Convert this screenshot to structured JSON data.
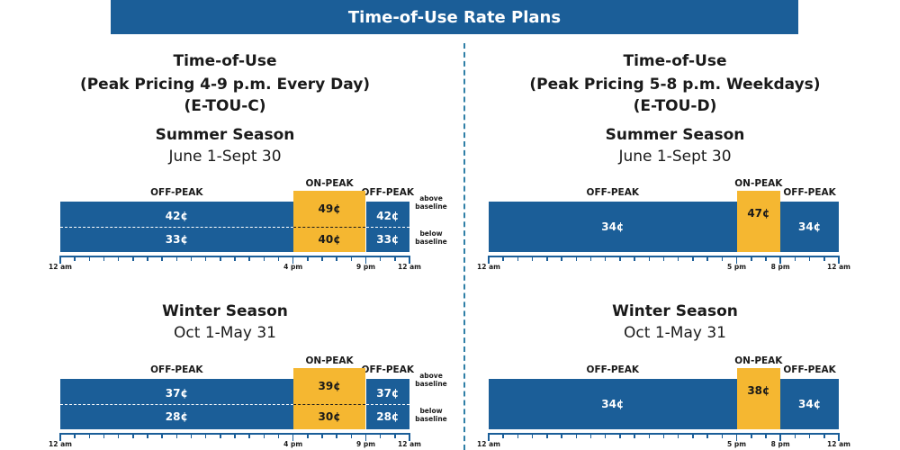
{
  "banner": "Time-of-Use Rate Plans",
  "colors": {
    "off_peak": "#1b5e98",
    "on_peak": "#f5b731",
    "divider": "#2f7fa6"
  },
  "plans": [
    {
      "id": "left",
      "title_lines": [
        "Time-of-Use",
        "(Peak Pricing 4-9 p.m. Every Day)",
        "(E-TOU-C)"
      ],
      "seasons": [
        {
          "name": "Summer Season",
          "dates": "June 1-Sept 30",
          "tiered": true,
          "off_peak_label": "OFF-PEAK",
          "on_peak_label": "ON-PEAK",
          "off_peak_above": "42¢",
          "off_peak_below": "33¢",
          "on_peak_above": "49¢",
          "on_peak_below": "40¢",
          "above_label": "above baseline",
          "below_label": "below baseline",
          "peak_start_hour": 16,
          "peak_end_hour": 21,
          "axis_labels": [
            "12 am",
            "4 pm",
            "9 pm",
            "12 am"
          ]
        },
        {
          "name": "Winter Season",
          "dates": "Oct 1-May 31",
          "tiered": true,
          "off_peak_label": "OFF-PEAK",
          "on_peak_label": "ON-PEAK",
          "off_peak_above": "37¢",
          "off_peak_below": "28¢",
          "on_peak_above": "39¢",
          "on_peak_below": "30¢",
          "above_label": "above baseline",
          "below_label": "below baseline",
          "peak_start_hour": 16,
          "peak_end_hour": 21,
          "axis_labels": [
            "12 am",
            "4 pm",
            "9 pm",
            "12 am"
          ]
        }
      ]
    },
    {
      "id": "right",
      "title_lines": [
        "Time-of-Use",
        "(Peak Pricing 5-8 p.m. Weekdays)",
        "(E-TOU-D)"
      ],
      "seasons": [
        {
          "name": "Summer Season",
          "dates": "June 1-Sept 30",
          "tiered": false,
          "off_peak_label": "OFF-PEAK",
          "on_peak_label": "ON-PEAK",
          "off_peak_rate": "34¢",
          "on_peak_rate": "47¢",
          "peak_start_hour": 17,
          "peak_end_hour": 20,
          "axis_labels": [
            "12 am",
            "5 pm",
            "8 pm",
            "12 am"
          ]
        },
        {
          "name": "Winter Season",
          "dates": "Oct 1-May 31",
          "tiered": false,
          "off_peak_label": "OFF-PEAK",
          "on_peak_label": "ON-PEAK",
          "off_peak_rate": "34¢",
          "on_peak_rate": "38¢",
          "peak_start_hour": 17,
          "peak_end_hour": 20,
          "axis_labels": [
            "12 am",
            "5 pm",
            "8 pm",
            "12 am"
          ]
        }
      ]
    }
  ]
}
